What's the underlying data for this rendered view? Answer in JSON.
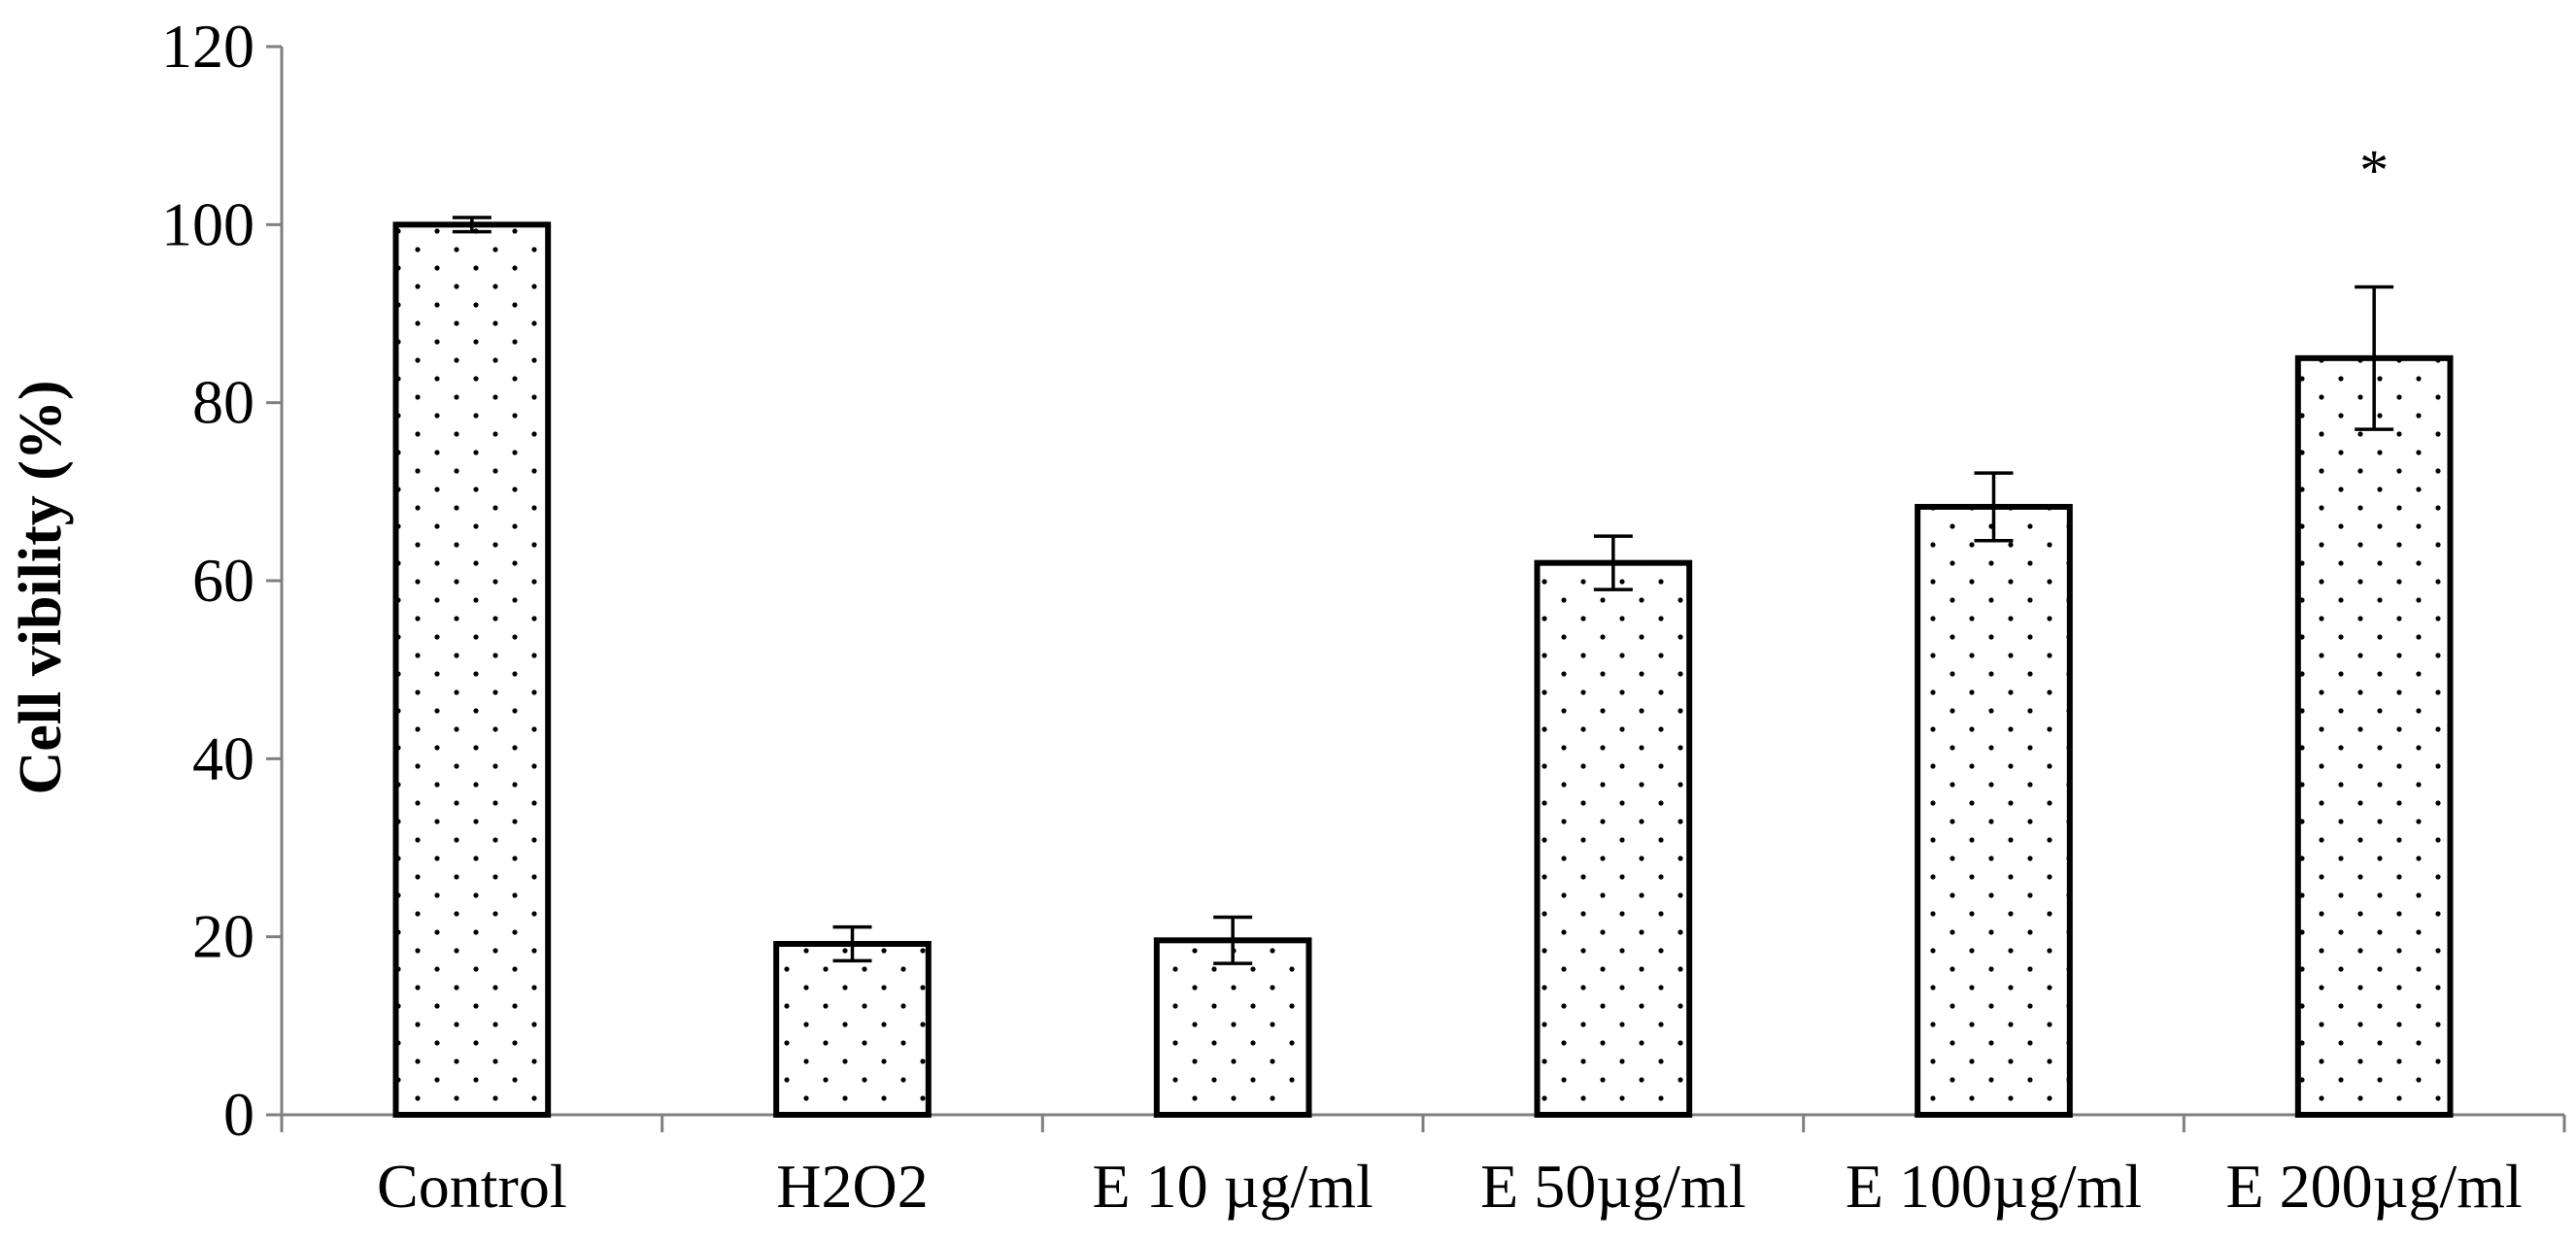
{
  "chart_data": {
    "type": "bar",
    "title": "",
    "xlabel": "",
    "ylabel": "Cell vibility (%)",
    "ylim": [
      0,
      120
    ],
    "yticks": [
      0,
      20,
      40,
      60,
      80,
      100,
      120
    ],
    "categories": [
      "Control",
      "H2O2",
      "E 10 µg/ml",
      "E 50µg/ml",
      "E 100µg/ml",
      "E 200µg/ml"
    ],
    "series": [
      {
        "name": "Cell vibility",
        "values": [
          100,
          19.2,
          19.6,
          62.0,
          68.3,
          85.0
        ],
        "errors": [
          0.8,
          1.9,
          2.6,
          3.0,
          3.8,
          8.0
        ]
      }
    ],
    "annotations": [
      {
        "category": "E 200µg/ml",
        "text": "*"
      }
    ],
    "grid": false,
    "legend": "none",
    "colors": {
      "bar_fill": "#ffffff",
      "bar_stroke": "#000000",
      "dot": "#000000",
      "axis": "#7f7f7f"
    }
  }
}
